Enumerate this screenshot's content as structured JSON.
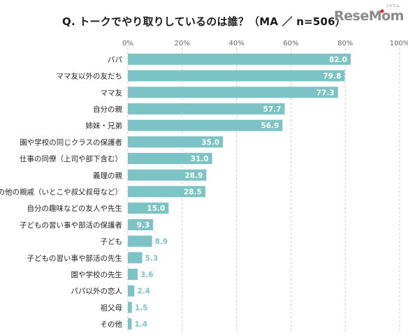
{
  "title": "Q. トークでやり取りしているのは誰？（MA ／ n=506）",
  "logo": {
    "main": "ReseMom",
    "sub": "リセマム"
  },
  "colors": {
    "bar": "#7cc3c6",
    "value_in_bar": "#ffffff",
    "value_out_bar": "#7cc3c6",
    "grid": "#c8c8c8",
    "label": "#222222",
    "tick": "#666666",
    "logo_gray": "#8a8a8a",
    "logo_red": "#e0303a"
  },
  "chart_data": {
    "type": "bar",
    "orientation": "horizontal",
    "title": "Q. トークでやり取りしているのは誰？（MA ／ n=506）",
    "x_ticks": [
      "0%",
      "20%",
      "40%",
      "60%",
      "80%",
      "100%"
    ],
    "xlim": [
      0,
      100
    ],
    "grid": true,
    "categories": [
      "パパ",
      "ママ友以外の友だち",
      "ママ友",
      "自分の親",
      "姉妹・兄弟",
      "園や学校の同じクラスの保護者",
      "仕事の同僚（上司や部下含む）",
      "義理の親",
      "その他の親戚（いとこや叔父叔母など）",
      "自分の趣味などの友人や先生",
      "子どもの習い事や部活の保護者",
      "子ども",
      "子どもの習い事や部活の先生",
      "園や学校の先生",
      "パパ以外の恋人",
      "祖父母",
      "その他"
    ],
    "values": [
      82.0,
      79.8,
      77.3,
      57.7,
      56.9,
      35.0,
      31.0,
      28.9,
      28.5,
      15.0,
      9.3,
      8.9,
      5.3,
      3.6,
      2.4,
      1.5,
      1.4
    ],
    "value_labels": [
      "82.0",
      "79.8",
      "77.3",
      "57.7",
      "56.9",
      "35.0",
      "31.0",
      "28.9",
      "28.5",
      "15.0",
      "9.3",
      "8.9",
      "5.3",
      "3.6",
      "2.4",
      "1.5",
      "1.4"
    ]
  }
}
